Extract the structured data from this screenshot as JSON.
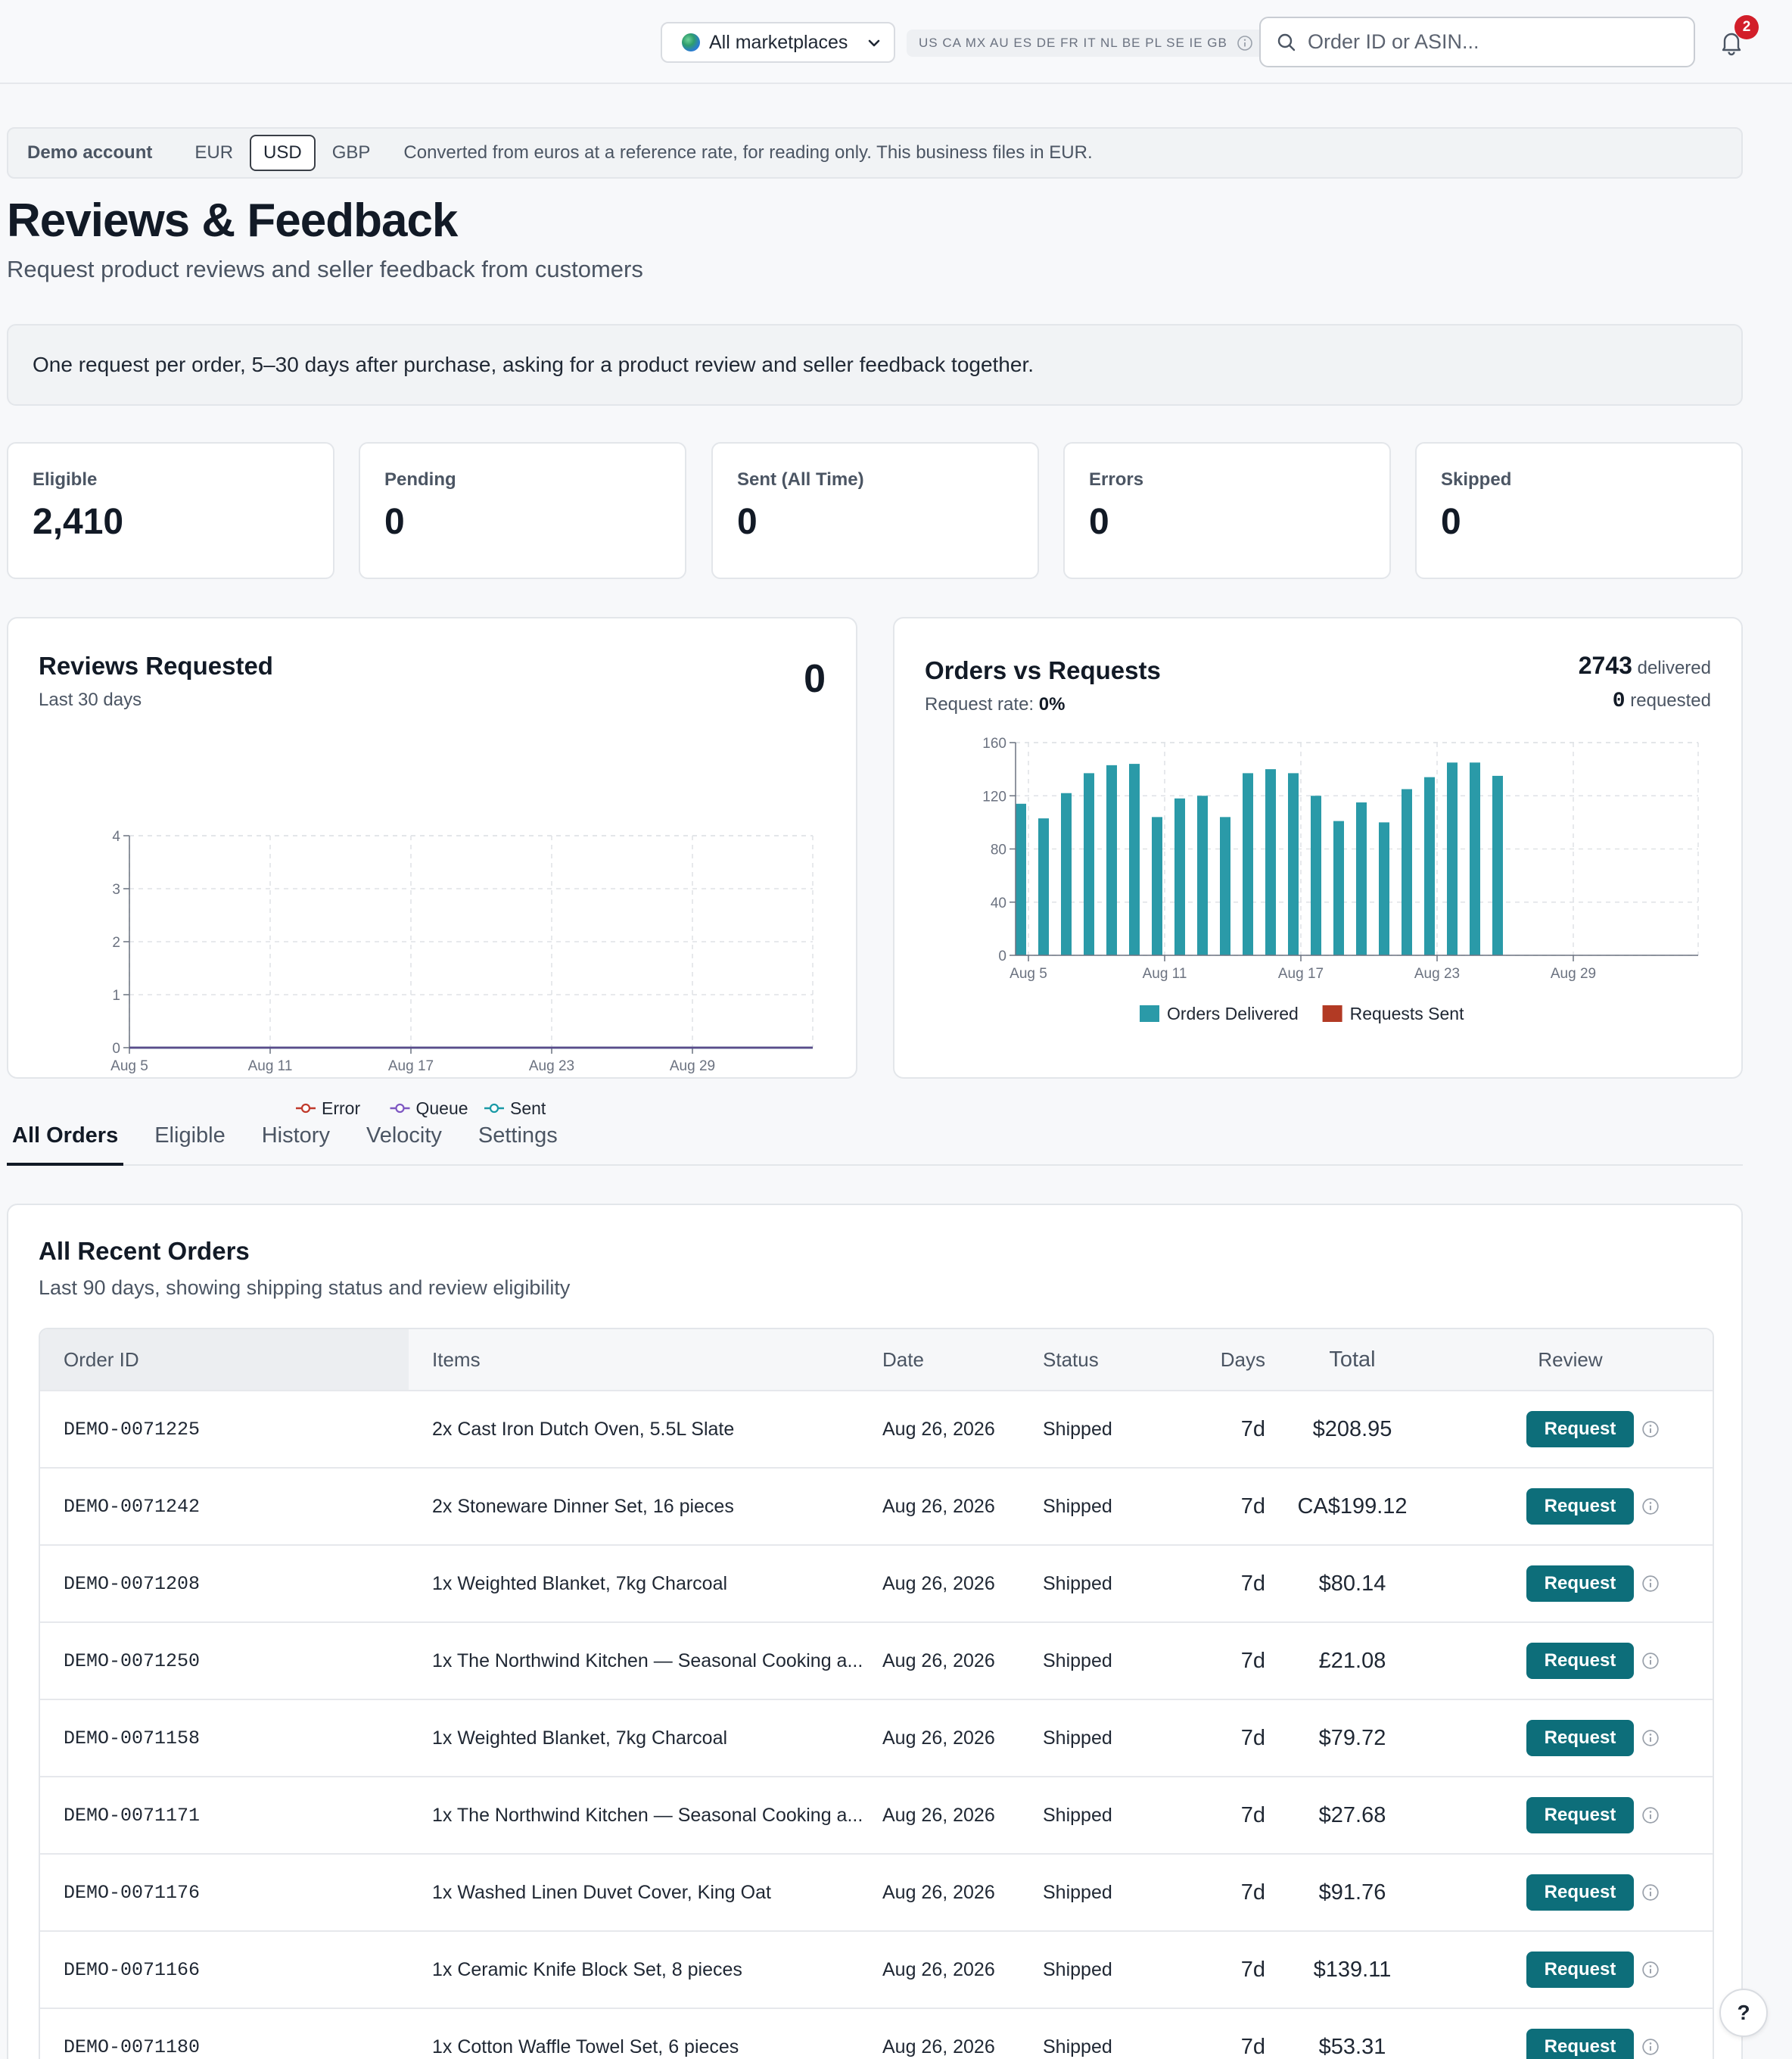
{
  "topbar": {
    "marketplace_label": "All marketplaces",
    "marketplace_codes": "US CA MX AU ES DE FR IT NL BE PL SE IE GB",
    "search_placeholder": "Order ID or ASIN...",
    "notification_count": "2"
  },
  "demo_bar": {
    "label": "Demo account",
    "currencies": [
      "EUR",
      "USD",
      "GBP"
    ],
    "active_currency": "USD",
    "note": "Converted from euros at a reference rate, for reading only. This business files in EUR."
  },
  "page": {
    "title": "Reviews & Feedback",
    "subtitle": "Request product reviews and seller feedback from customers",
    "info": "One request per order, 5–30 days after purchase, asking for a product review and seller feedback together."
  },
  "stats": [
    {
      "label": "Eligible",
      "value": "2,410"
    },
    {
      "label": "Pending",
      "value": "0"
    },
    {
      "label": "Sent (All Time)",
      "value": "0"
    },
    {
      "label": "Errors",
      "value": "0"
    },
    {
      "label": "Skipped",
      "value": "0"
    }
  ],
  "reviews_card": {
    "title": "Reviews Requested",
    "subtitle": "Last 30 days",
    "total": "0"
  },
  "orders_card": {
    "title": "Orders vs Requests",
    "rate_label": "Request rate:",
    "rate_value": "0%",
    "delivered_value": "2743",
    "delivered_label": "delivered",
    "requested_value": "0",
    "requested_label": "requested"
  },
  "chart_data": [
    {
      "type": "line",
      "x_ticks": [
        "Aug 5",
        "Aug 11",
        "Aug 17",
        "Aug 23",
        "Aug 29"
      ],
      "ylim": [
        0,
        4
      ],
      "y_ticks": [
        "0",
        "1",
        "2",
        "3",
        "4"
      ],
      "grid": true,
      "legend_placement": "bottom",
      "series": [
        {
          "name": "Error",
          "color": "#c0392b",
          "values": [
            0,
            0,
            0,
            0,
            0
          ]
        },
        {
          "name": "Queue",
          "color": "#7e57c2",
          "values": [
            0,
            0,
            0,
            0,
            0
          ]
        },
        {
          "name": "Sent",
          "color": "#1a9aa6",
          "values": [
            0,
            0,
            0,
            0,
            0
          ]
        }
      ]
    },
    {
      "type": "bar",
      "x_ticks": [
        "Aug 5",
        "Aug 11",
        "Aug 17",
        "Aug 23",
        "Aug 29"
      ],
      "ylim": [
        0,
        160
      ],
      "y_ticks": [
        "0",
        "40",
        "80",
        "120",
        "160"
      ],
      "grid": true,
      "legend_placement": "bottom",
      "series": [
        {
          "name": "Orders Delivered",
          "color": "#2a9aa8",
          "values": [
            114,
            103,
            122,
            137,
            143,
            144,
            104,
            118,
            120,
            104,
            137,
            140,
            137,
            120,
            101,
            115,
            100,
            125,
            134,
            145,
            145,
            135
          ]
        },
        {
          "name": "Requests Sent",
          "color": "#b23a24",
          "values": [
            0,
            0,
            0,
            0,
            0,
            0,
            0,
            0,
            0,
            0,
            0,
            0,
            0,
            0,
            0,
            0,
            0,
            0,
            0,
            0,
            0,
            0
          ]
        }
      ]
    }
  ],
  "tabs": [
    "All Orders",
    "Eligible",
    "History",
    "Velocity",
    "Settings"
  ],
  "active_tab": "All Orders",
  "orders_table": {
    "title": "All Recent Orders",
    "subtitle": "Last 90 days, showing shipping status and review eligibility",
    "columns": [
      "Order ID",
      "Items",
      "Date",
      "Status",
      "Days",
      "Total",
      "Review"
    ],
    "button_label": "Request",
    "rows": [
      {
        "id": "DEMO-0071225",
        "items": "2x Cast Iron Dutch Oven, 5.5L Slate",
        "date": "Aug 26, 2026",
        "status": "Shipped",
        "days": "7d",
        "total": "$208.95"
      },
      {
        "id": "DEMO-0071242",
        "items": "2x Stoneware Dinner Set, 16 pieces",
        "date": "Aug 26, 2026",
        "status": "Shipped",
        "days": "7d",
        "total": "CA$199.12"
      },
      {
        "id": "DEMO-0071208",
        "items": "1x Weighted Blanket, 7kg Charcoal",
        "date": "Aug 26, 2026",
        "status": "Shipped",
        "days": "7d",
        "total": "$80.14"
      },
      {
        "id": "DEMO-0071250",
        "items": "1x The Northwind Kitchen — Seasonal Cooking a...",
        "date": "Aug 26, 2026",
        "status": "Shipped",
        "days": "7d",
        "total": "£21.08"
      },
      {
        "id": "DEMO-0071158",
        "items": "1x Weighted Blanket, 7kg Charcoal",
        "date": "Aug 26, 2026",
        "status": "Shipped",
        "days": "7d",
        "total": "$79.72"
      },
      {
        "id": "DEMO-0071171",
        "items": "1x The Northwind Kitchen — Seasonal Cooking a...",
        "date": "Aug 26, 2026",
        "status": "Shipped",
        "days": "7d",
        "total": "$27.68"
      },
      {
        "id": "DEMO-0071176",
        "items": "1x Washed Linen Duvet Cover, King Oat",
        "date": "Aug 26, 2026",
        "status": "Shipped",
        "days": "7d",
        "total": "$91.76"
      },
      {
        "id": "DEMO-0071166",
        "items": "1x Ceramic Knife Block Set, 8 pieces",
        "date": "Aug 26, 2026",
        "status": "Shipped",
        "days": "7d",
        "total": "$139.11"
      },
      {
        "id": "DEMO-0071180",
        "items": "1x Cotton Waffle Towel Set, 6 pieces",
        "date": "Aug 26, 2026",
        "status": "Shipped",
        "days": "7d",
        "total": "$53.31"
      }
    ]
  },
  "help_label": "?"
}
